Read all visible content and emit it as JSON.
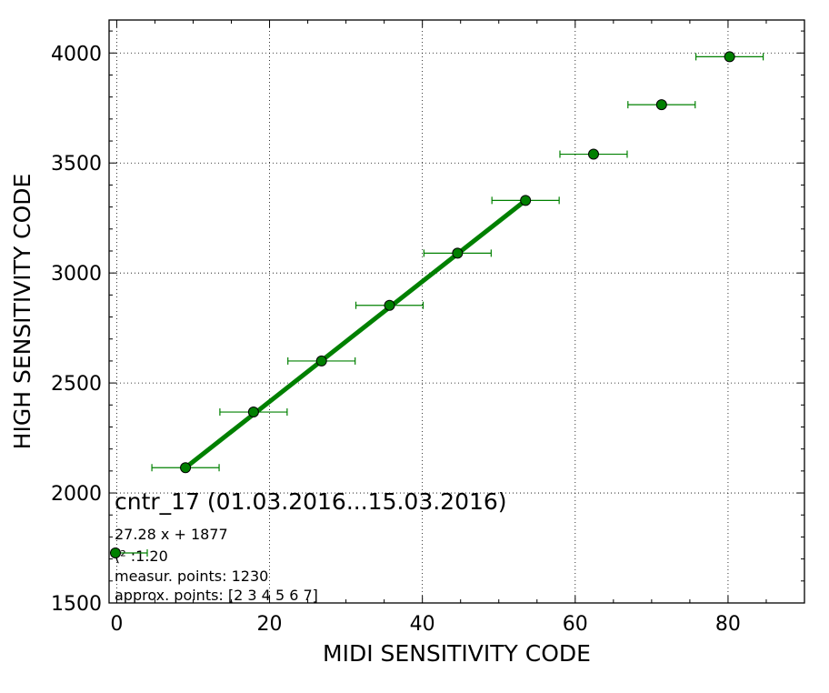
{
  "chart_data": {
    "type": "scatter",
    "xlabel": "MIDI SENSITIVITY CODE",
    "ylabel": "HIGH SENSITIVITY CODE",
    "xlim": [
      -1,
      90
    ],
    "ylim": [
      1500,
      4150
    ],
    "xticks": [
      0,
      20,
      40,
      60,
      80
    ],
    "yticks": [
      1500,
      2000,
      2500,
      3000,
      3500,
      4000
    ],
    "grid": true,
    "grid_style": "dotted",
    "series": [
      {
        "marker": "circle",
        "color": "#008000",
        "x": [
          9.0,
          17.9,
          26.8,
          35.7,
          44.6,
          53.5,
          62.4,
          71.3,
          80.2
        ],
        "y": [
          2115,
          2368,
          2600,
          2853,
          3090,
          3330,
          3540,
          3765,
          3983
        ],
        "xerr": [
          4.4,
          4.4,
          4.4,
          4.4,
          4.4,
          4.4,
          4.4,
          4.4,
          4.4
        ],
        "yerr": [
          7,
          7,
          7,
          7,
          7,
          7,
          7,
          14,
          7
        ]
      }
    ],
    "fit_line": {
      "color": "#008000",
      "x": [
        9.0,
        53.5
      ],
      "y": [
        2115,
        3330
      ]
    },
    "legend": {
      "placement": "lower-left",
      "title": "cntr_17 (01.03.2016...15.03.2016)",
      "lines": [
        "27.28 x + 1877",
        "(²  :1.20",
        "measur. points: 1230",
        "approx. points: [2 3 4 5 6 7]"
      ]
    }
  }
}
